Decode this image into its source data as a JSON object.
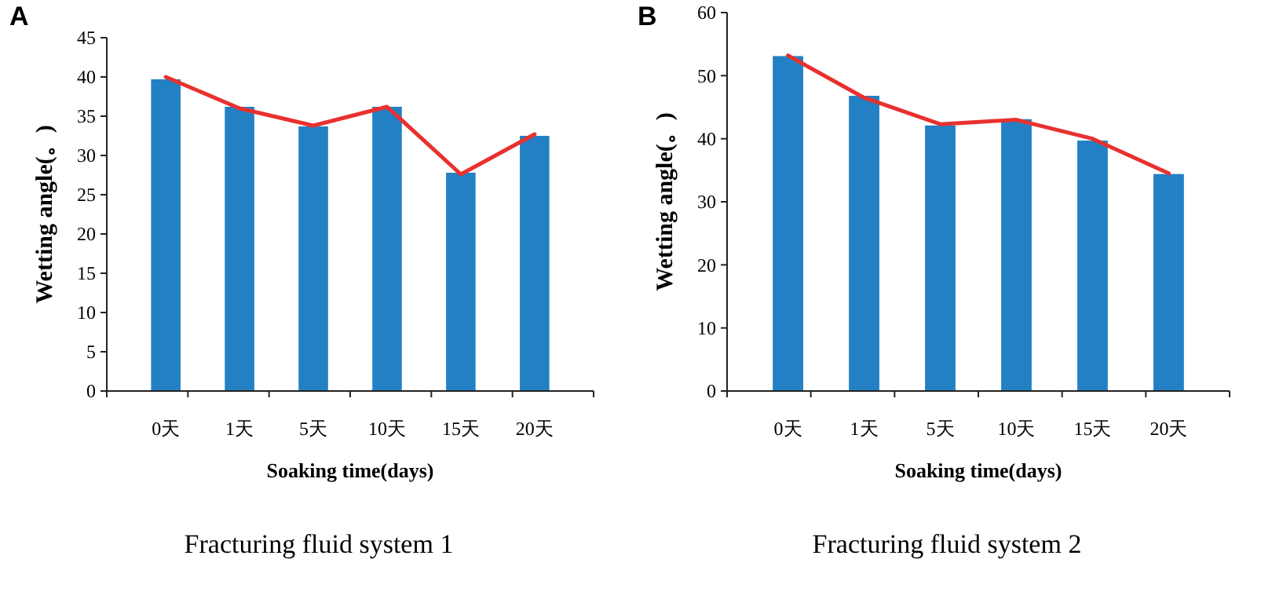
{
  "chart_data": [
    {
      "type": "bar",
      "title": "Fracturing fluid system 1",
      "xlabel": "Soaking time(days)",
      "ylabel": "Wetting angle(。)",
      "annotations": [
        "A"
      ],
      "categories": [
        "0天",
        "1天",
        "5天",
        "10天",
        "15天",
        "20天"
      ],
      "ylim": [
        0,
        45
      ],
      "yticks": [
        0,
        5,
        10,
        15,
        20,
        25,
        30,
        35,
        40,
        45
      ],
      "series": [
        {
          "color": "#2380c4",
          "values": [
            39.7,
            36.2,
            33.7,
            36.2,
            27.8,
            32.5
          ]
        },
        {
          "type": "line",
          "color": "#e8312f",
          "values": [
            40,
            36,
            33.8,
            36.2,
            27.6,
            32.7
          ]
        }
      ]
    },
    {
      "type": "bar",
      "title": "Fracturing fluid system 2",
      "xlabel": "Soaking time(days)",
      "ylabel": "Wetting angle(。)",
      "annotations": [
        "B"
      ],
      "categories": [
        "0天",
        "1天",
        "5天",
        "10天",
        "15天",
        "20天"
      ],
      "ylim": [
        0,
        60
      ],
      "yticks": [
        0,
        10,
        20,
        30,
        40,
        50,
        60
      ],
      "series": [
        {
          "color": "#2380c4",
          "values": [
            53.1,
            46.8,
            42.1,
            43.1,
            39.7,
            34.4
          ]
        },
        {
          "type": "line",
          "color": "#e8312f",
          "values": [
            53.2,
            46.5,
            42.3,
            43,
            40,
            34.5
          ]
        }
      ]
    }
  ]
}
